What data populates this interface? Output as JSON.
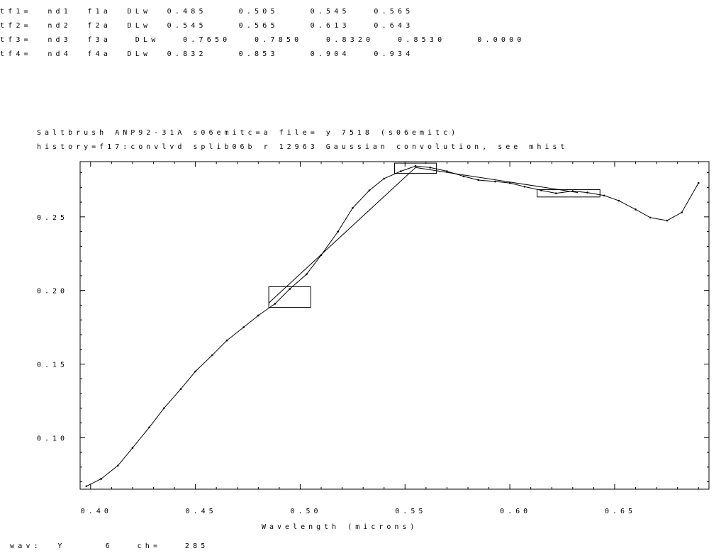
{
  "header_lines": [
    "tf1=  nd1  f1a  DLw  0.485    0.505    0.545   0.565",
    "tf2=  nd2  f2a  DLw  0.545    0.565    0.613   0.643",
    "tf3=  nd3  f3a   DLw   0.7650   0.7850   0.8320   0.8530    0.0000",
    "tf4=  nd4  f4a  DLw  0.832    0.853    0.904   0.934"
  ],
  "plot_title_1": "Saltbrush ANP92-31A s06emitc=a             file= y     7518  (s06emitc)",
  "plot_title_2": "history=f17:convlvd splib06b r 12963 Gaussian convolution, see mhist",
  "status_line": "wav:  Y     6   ch=   285",
  "chart_data": {
    "type": "line",
    "title": "Saltbrush ANP92-31A s06emitc=a             file= y     7518  (s06emitc)",
    "subtitle": "history=f17:convlvd splib06b r 12963 Gaussian convolution, see mhist",
    "xlabel": "Wavelength (microns)",
    "ylabel": "",
    "xlim": [
      0.395,
      0.695
    ],
    "ylim": [
      0.065,
      0.2875
    ],
    "xticks": [
      0.4,
      0.45,
      0.5,
      0.55,
      0.6,
      0.65
    ],
    "xtick_labels": [
      "0.40",
      "0.45",
      "0.50",
      "0.55",
      "0.60",
      "0.65"
    ],
    "yticks": [
      0.1,
      0.15,
      0.2,
      0.25
    ],
    "ytick_labels": [
      "0.10",
      "0.15",
      "0.20",
      "0.25"
    ],
    "grid": false,
    "series": [
      {
        "x": [
          0.398,
          0.405,
          0.413,
          0.42,
          0.428,
          0.435,
          0.443,
          0.45,
          0.458,
          0.465,
          0.473,
          0.48,
          0.488,
          0.495,
          0.503,
          0.51,
          0.518,
          0.525,
          0.533,
          0.54,
          0.548,
          0.555,
          0.562,
          0.57,
          0.578,
          0.585,
          0.593,
          0.6,
          0.607,
          0.615,
          0.622,
          0.63,
          0.637,
          0.645,
          0.652,
          0.66,
          0.667,
          0.675,
          0.682,
          0.69
        ],
        "y": [
          0.067,
          0.072,
          0.081,
          0.093,
          0.107,
          0.12,
          0.133,
          0.145,
          0.156,
          0.166,
          0.175,
          0.183,
          0.191,
          0.201,
          0.211,
          0.224,
          0.24,
          0.256,
          0.268,
          0.276,
          0.281,
          0.2845,
          0.2835,
          0.281,
          0.2775,
          0.275,
          0.274,
          0.273,
          0.2705,
          0.268,
          0.266,
          0.2675,
          0.2665,
          0.2645,
          0.261,
          0.255,
          0.2495,
          0.2475,
          0.253,
          0.273
        ]
      }
    ],
    "continuum_segments": [
      {
        "x": [
          0.485,
          0.555
        ],
        "y": [
          0.1915,
          0.2835
        ]
      },
      {
        "x": [
          0.555,
          0.6325
        ],
        "y": [
          0.2835,
          0.2665
        ]
      }
    ],
    "feature_windows": [
      {
        "x_range": [
          0.485,
          0.505
        ],
        "y_range": [
          0.1885,
          0.2025
        ]
      },
      {
        "x_range": [
          0.545,
          0.565
        ],
        "y_range": [
          0.2795,
          0.2865
        ]
      },
      {
        "x_range": [
          0.613,
          0.643
        ],
        "y_range": [
          0.2635,
          0.2685
        ]
      }
    ]
  }
}
